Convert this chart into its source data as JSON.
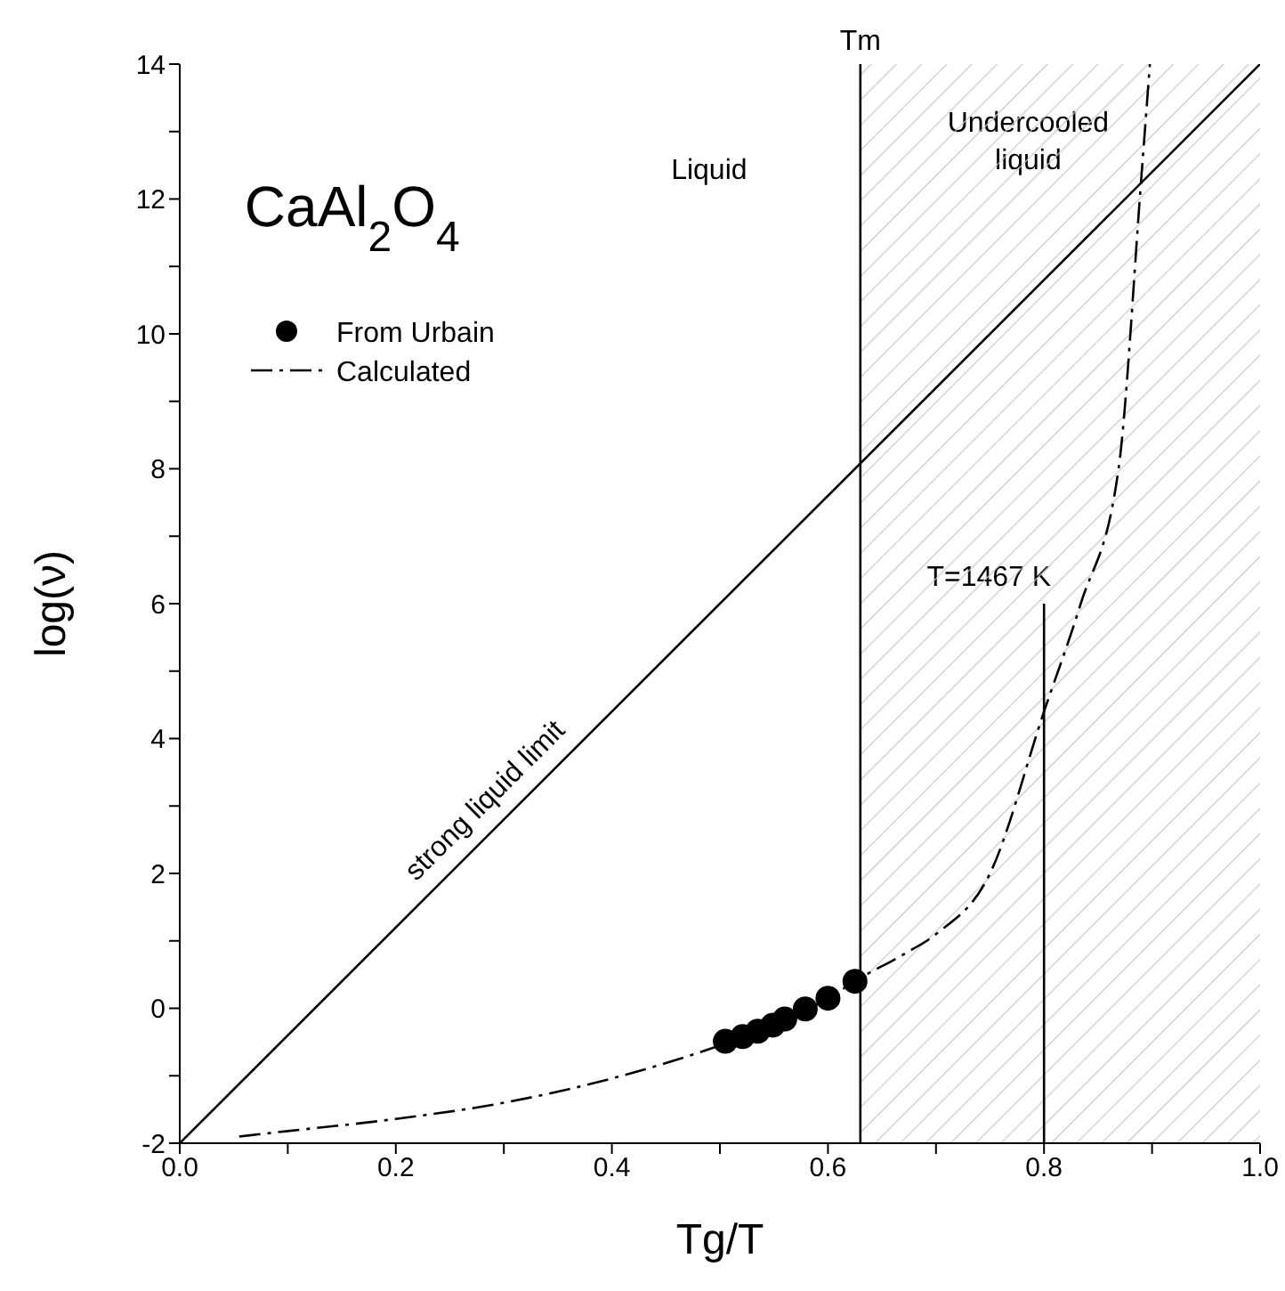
{
  "chart_data": {
    "type": "scatter",
    "title": "CaAl$_{2}$O$_{4}$",
    "xlabel": "Tg/T",
    "ylabel": "log(ν)",
    "xlim": [
      0,
      1
    ],
    "ylim": [
      -2,
      14
    ],
    "xticks": [
      {
        "value": 0,
        "label": "0.0"
      },
      {
        "value": 0.1,
        "label": null
      },
      {
        "value": 0.2,
        "label": "0.2"
      },
      {
        "value": 0.3,
        "label": null
      },
      {
        "value": 0.4,
        "label": "0.4"
      },
      {
        "value": 0.5,
        "label": null
      },
      {
        "value": 0.6,
        "label": "0.6"
      },
      {
        "value": 0.7,
        "label": null
      },
      {
        "value": 0.8,
        "label": "0.8"
      },
      {
        "value": 0.9,
        "label": null
      },
      {
        "value": 1,
        "label": "1.0"
      }
    ],
    "yticks": [
      -2,
      {
        "value": -1,
        "label": null
      },
      0,
      {
        "value": 1,
        "label": null
      },
      2,
      {
        "value": 3,
        "label": null
      },
      4,
      {
        "value": 5,
        "label": null
      },
      6,
      {
        "value": 7,
        "label": null
      },
      8,
      {
        "value": 9,
        "label": null
      },
      10,
      {
        "value": 11,
        "label": null
      },
      12,
      {
        "value": 13,
        "label": null
      },
      14
    ],
    "grid": false,
    "legend": "top left",
    "series": [
      {
        "name": "From Urbain",
        "marker": "circle",
        "color": "#000000",
        "x": [
          0.505,
          0.521,
          0.535,
          0.549,
          0.56,
          0.579,
          0.6,
          0.625
        ],
        "values": [
          -0.49,
          -0.42,
          -0.34,
          -0.25,
          -0.16,
          -0.01,
          0.15,
          0.4
        ]
      },
      {
        "name": "Calculated",
        "type": "line",
        "marker": "none",
        "line_style": "dashdot",
        "color": "#000000",
        "x": [
          0.055,
          0.1,
          0.2,
          0.3,
          0.4,
          0.5,
          0.55,
          0.6,
          0.63,
          0.67,
          0.7,
          0.75,
          0.8,
          0.834,
          0.869,
          0.89,
          0.898
        ],
        "values": [
          -1.9,
          -1.82,
          -1.64,
          -1.4,
          -1.04,
          -0.55,
          -0.25,
          0.15,
          0.45,
          0.8,
          1.1,
          2,
          4.4,
          6,
          8,
          12.3,
          14
        ]
      },
      {
        "name": "strong liquid limit",
        "type": "line",
        "marker": "none",
        "line_style": "solid",
        "color": "#000000",
        "x": [
          0,
          1
        ],
        "values": [
          -2,
          14
        ]
      },
      {
        "name": "T=1467 K",
        "type": "line",
        "marker": "none",
        "line_style": "solid",
        "color": "#000000",
        "x": [
          0.8,
          0.8
        ],
        "values": [
          -2,
          6
        ]
      }
    ],
    "ref_lines": [
      {
        "axis": "x",
        "value": 0.63,
        "label": "Tm",
        "color": "#000000"
      }
    ],
    "bands": [
      {
        "axis": "x",
        "from": 0.63,
        "to": 1,
        "label": "Undercooled liquid",
        "color": "#c8c8c8"
      }
    ],
    "annotations": [
      "Liquid"
    ]
  }
}
